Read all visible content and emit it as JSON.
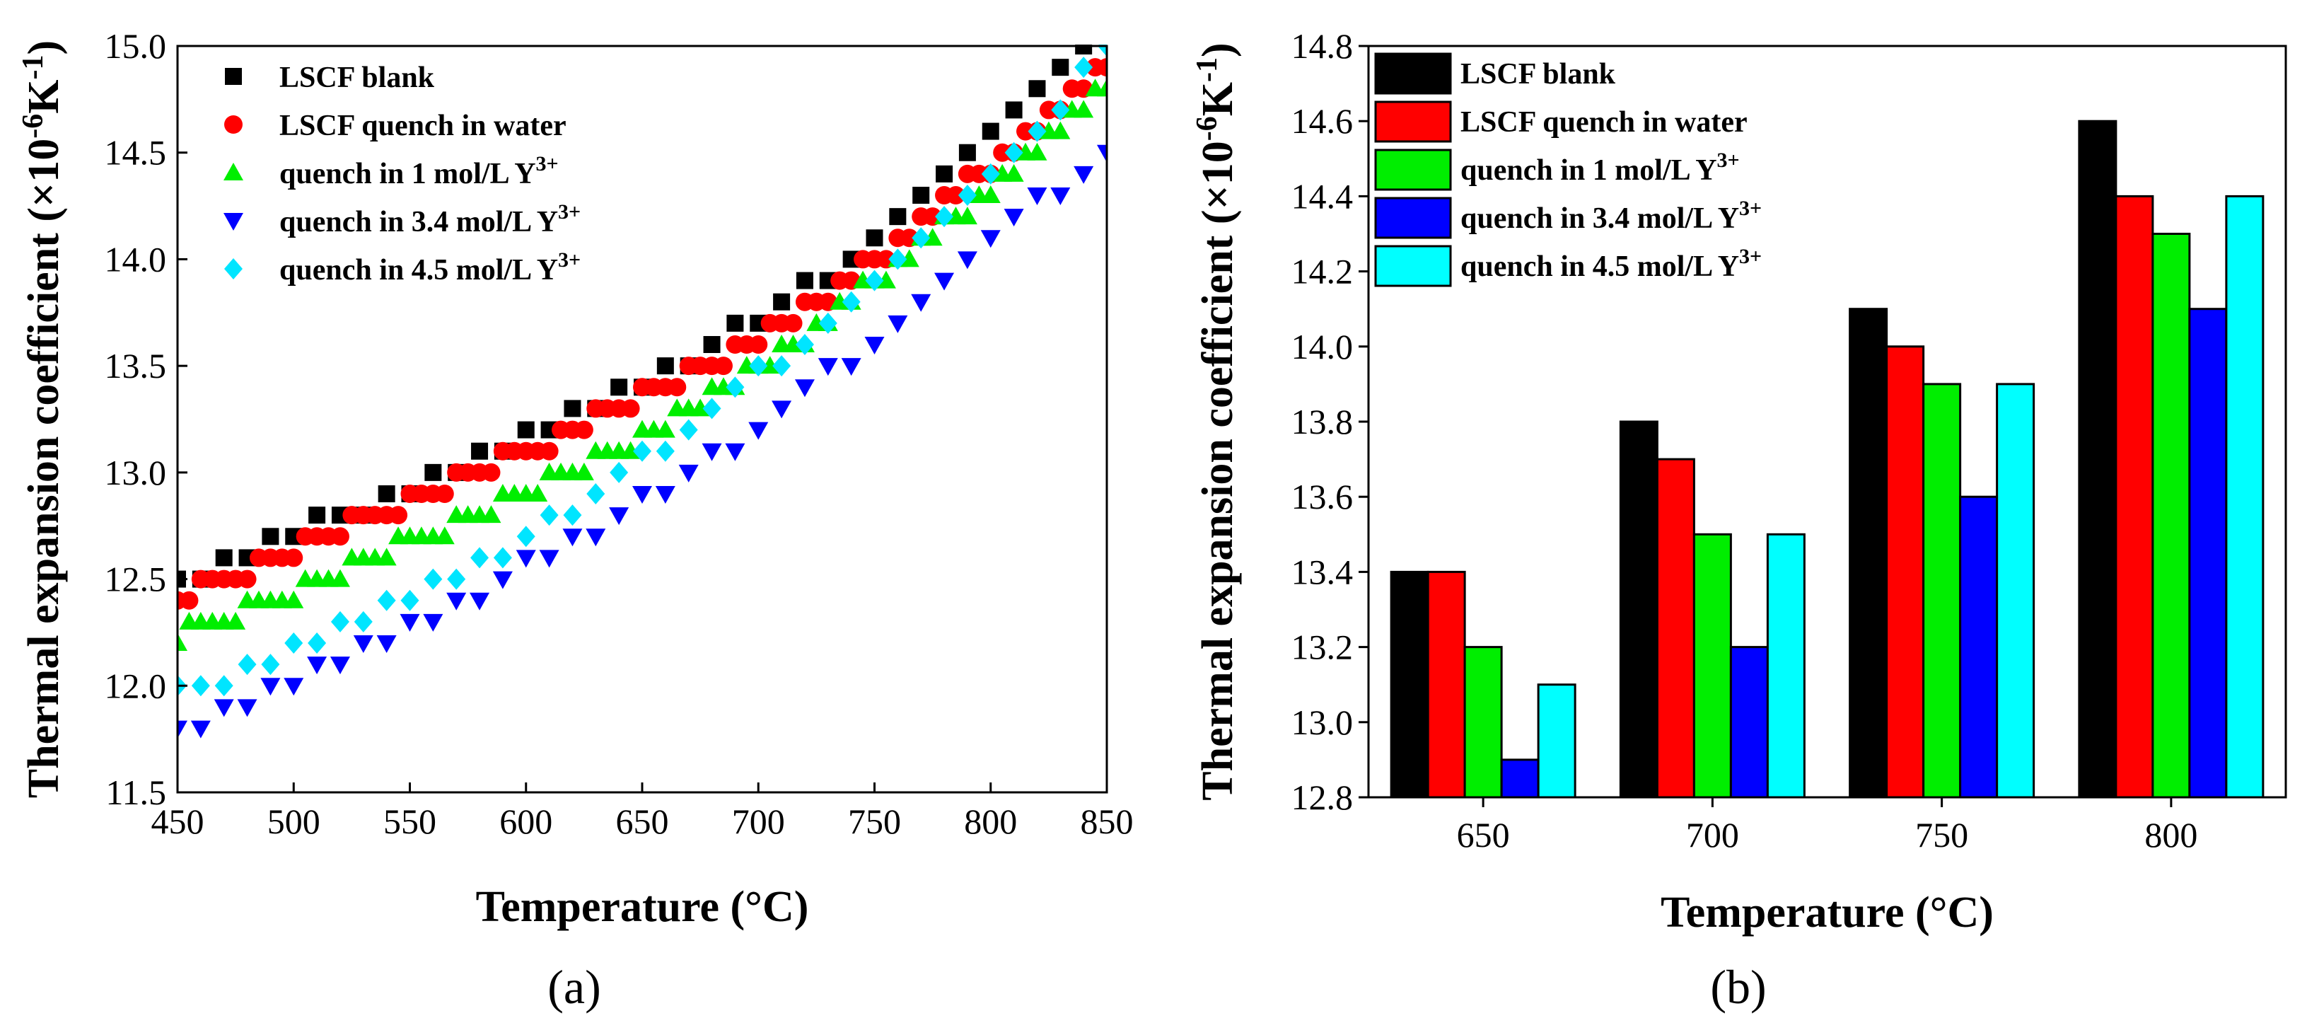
{
  "chart_data": [
    {
      "type": "scatter",
      "panel_label": "(a)",
      "xlabel": "Temperature (°C)",
      "ylabel": "Thermal expansion coefficient (×10⁻⁶K⁻¹)",
      "xlim": [
        450,
        850
      ],
      "ylim": [
        11.5,
        15.0
      ],
      "xticks": [
        "450",
        "500",
        "550",
        "600",
        "650",
        "700",
        "750",
        "800",
        "850"
      ],
      "yticks": [
        "11.5",
        "12.0",
        "12.5",
        "13.0",
        "13.5",
        "14.0",
        "14.5",
        "15.0"
      ],
      "legend_position": "top-left",
      "series": [
        {
          "name": "LSCF blank",
          "marker": "square",
          "color": "#000000",
          "x": [
            450,
            460,
            470,
            480,
            490,
            500,
            510,
            520,
            530,
            540,
            550,
            560,
            570,
            580,
            590,
            600,
            610,
            620,
            630,
            640,
            650,
            660,
            670,
            680,
            690,
            700,
            710,
            720,
            730,
            740,
            750,
            760,
            770,
            780,
            790,
            800,
            810,
            820,
            830,
            840
          ],
          "y": [
            12.5,
            12.5,
            12.6,
            12.6,
            12.7,
            12.7,
            12.8,
            12.8,
            12.8,
            12.9,
            12.9,
            13.0,
            13.0,
            13.1,
            13.1,
            13.2,
            13.2,
            13.3,
            13.3,
            13.4,
            13.4,
            13.5,
            13.5,
            13.6,
            13.7,
            13.7,
            13.8,
            13.9,
            13.9,
            14.0,
            14.1,
            14.2,
            14.3,
            14.4,
            14.5,
            14.6,
            14.7,
            14.8,
            14.9,
            15.0
          ]
        },
        {
          "name": "LSCF quench in water",
          "marker": "circle",
          "color": "#ff0000",
          "x": [
            450,
            455,
            460,
            465,
            470,
            475,
            480,
            485,
            490,
            495,
            500,
            505,
            510,
            515,
            520,
            525,
            530,
            535,
            540,
            545,
            550,
            555,
            560,
            565,
            570,
            575,
            580,
            585,
            590,
            595,
            600,
            605,
            610,
            615,
            620,
            625,
            630,
            635,
            640,
            645,
            650,
            655,
            660,
            665,
            670,
            675,
            680,
            685,
            690,
            695,
            700,
            705,
            710,
            715,
            720,
            725,
            730,
            735,
            740,
            745,
            750,
            755,
            760,
            765,
            770,
            775,
            780,
            785,
            790,
            795,
            800,
            805,
            810,
            815,
            820,
            825,
            830,
            835,
            840,
            845,
            850
          ],
          "y": [
            12.4,
            12.4,
            12.5,
            12.5,
            12.5,
            12.5,
            12.5,
            12.6,
            12.6,
            12.6,
            12.6,
            12.7,
            12.7,
            12.7,
            12.7,
            12.8,
            12.8,
            12.8,
            12.8,
            12.8,
            12.9,
            12.9,
            12.9,
            12.9,
            13.0,
            13.0,
            13.0,
            13.0,
            13.1,
            13.1,
            13.1,
            13.1,
            13.1,
            13.2,
            13.2,
            13.2,
            13.3,
            13.3,
            13.3,
            13.3,
            13.4,
            13.4,
            13.4,
            13.4,
            13.5,
            13.5,
            13.5,
            13.5,
            13.6,
            13.6,
            13.6,
            13.7,
            13.7,
            13.7,
            13.8,
            13.8,
            13.8,
            13.9,
            13.9,
            14.0,
            14.0,
            14.0,
            14.1,
            14.1,
            14.2,
            14.2,
            14.3,
            14.3,
            14.4,
            14.4,
            14.4,
            14.5,
            14.5,
            14.6,
            14.6,
            14.7,
            14.7,
            14.8,
            14.8,
            14.9,
            14.9
          ]
        },
        {
          "name": "quench in 1 mol/L Y3+",
          "marker": "triangle-up",
          "color": "#00ee00",
          "x": [
            450,
            455,
            460,
            465,
            470,
            475,
            480,
            485,
            490,
            495,
            500,
            505,
            510,
            515,
            520,
            525,
            530,
            535,
            540,
            545,
            550,
            555,
            560,
            565,
            570,
            575,
            580,
            585,
            590,
            595,
            600,
            605,
            610,
            615,
            620,
            625,
            630,
            635,
            640,
            645,
            650,
            655,
            660,
            665,
            670,
            675,
            680,
            685,
            690,
            695,
            700,
            705,
            710,
            715,
            720,
            725,
            730,
            735,
            740,
            745,
            750,
            755,
            760,
            765,
            770,
            775,
            780,
            785,
            790,
            795,
            800,
            805,
            810,
            815,
            820,
            825,
            830,
            835,
            840,
            845,
            850
          ],
          "y": [
            12.2,
            12.3,
            12.3,
            12.3,
            12.3,
            12.3,
            12.4,
            12.4,
            12.4,
            12.4,
            12.4,
            12.5,
            12.5,
            12.5,
            12.5,
            12.6,
            12.6,
            12.6,
            12.6,
            12.7,
            12.7,
            12.7,
            12.7,
            12.7,
            12.8,
            12.8,
            12.8,
            12.8,
            12.9,
            12.9,
            12.9,
            12.9,
            13.0,
            13.0,
            13.0,
            13.0,
            13.1,
            13.1,
            13.1,
            13.1,
            13.2,
            13.2,
            13.2,
            13.3,
            13.3,
            13.3,
            13.4,
            13.4,
            13.4,
            13.5,
            13.5,
            13.5,
            13.6,
            13.6,
            13.6,
            13.7,
            13.7,
            13.8,
            13.8,
            13.9,
            13.9,
            13.9,
            14.0,
            14.0,
            14.1,
            14.1,
            14.2,
            14.2,
            14.2,
            14.3,
            14.3,
            14.4,
            14.4,
            14.5,
            14.5,
            14.6,
            14.6,
            14.7,
            14.7,
            14.8,
            14.8
          ]
        },
        {
          "name": "quench in 3.4 mol/L Y3+",
          "marker": "triangle-down",
          "color": "#0000ff",
          "x": [
            450,
            460,
            470,
            480,
            490,
            500,
            510,
            520,
            530,
            540,
            550,
            560,
            570,
            580,
            590,
            600,
            610,
            620,
            630,
            640,
            650,
            660,
            670,
            680,
            690,
            700,
            710,
            720,
            730,
            740,
            750,
            760,
            770,
            780,
            790,
            800,
            810,
            820,
            830,
            840,
            850
          ],
          "y": [
            11.8,
            11.8,
            11.9,
            11.9,
            12.0,
            12.0,
            12.1,
            12.1,
            12.2,
            12.2,
            12.3,
            12.3,
            12.4,
            12.4,
            12.5,
            12.6,
            12.6,
            12.7,
            12.7,
            12.8,
            12.9,
            12.9,
            13.0,
            13.1,
            13.1,
            13.2,
            13.3,
            13.4,
            13.5,
            13.5,
            13.6,
            13.7,
            13.8,
            13.9,
            14.0,
            14.1,
            14.2,
            14.3,
            14.3,
            14.4,
            14.5
          ]
        },
        {
          "name": "quench in 4.5 mol/L Y3+",
          "marker": "diamond",
          "color": "#00e5ff",
          "x": [
            450,
            460,
            470,
            480,
            490,
            500,
            510,
            520,
            530,
            540,
            550,
            560,
            570,
            580,
            590,
            600,
            610,
            620,
            630,
            640,
            650,
            660,
            670,
            680,
            690,
            700,
            710,
            720,
            730,
            740,
            750,
            760,
            770,
            780,
            790,
            800,
            810,
            820,
            830,
            840,
            850
          ],
          "y": [
            12.0,
            12.0,
            12.0,
            12.1,
            12.1,
            12.2,
            12.2,
            12.3,
            12.3,
            12.4,
            12.4,
            12.5,
            12.5,
            12.6,
            12.6,
            12.7,
            12.8,
            12.8,
            12.9,
            13.0,
            13.1,
            13.1,
            13.2,
            13.3,
            13.4,
            13.5,
            13.5,
            13.6,
            13.7,
            13.8,
            13.9,
            14.0,
            14.1,
            14.2,
            14.3,
            14.4,
            14.5,
            14.6,
            14.7,
            14.9,
            15.0
          ]
        }
      ]
    },
    {
      "type": "bar",
      "panel_label": "(b)",
      "xlabel": "Temperature (°C)",
      "ylabel": "Thermal expansion coefficient (×10⁻⁶K⁻¹)",
      "ylim": [
        12.8,
        14.8
      ],
      "yticks": [
        "12.8",
        "13.0",
        "13.2",
        "13.4",
        "13.6",
        "13.8",
        "14.0",
        "14.2",
        "14.4",
        "14.6",
        "14.8"
      ],
      "categories": [
        "650",
        "700",
        "750",
        "800"
      ],
      "legend_position": "top-left",
      "series": [
        {
          "name": "LSCF blank",
          "color": "#000000",
          "values": [
            13.4,
            13.8,
            14.1,
            14.6
          ]
        },
        {
          "name": "LSCF quench in water",
          "color": "#ff0000",
          "values": [
            13.4,
            13.7,
            14.0,
            14.4
          ]
        },
        {
          "name": "quench in 1 mol/L Y3+",
          "color": "#00ee00",
          "values": [
            13.2,
            13.5,
            13.9,
            14.3
          ]
        },
        {
          "name": "quench in 3.4 mol/L Y3+",
          "color": "#0000ff",
          "values": [
            12.9,
            13.2,
            13.6,
            14.1
          ]
        },
        {
          "name": "quench in 4.5 mol/L Y3+",
          "color": "#00ffff",
          "values": [
            13.1,
            13.5,
            13.9,
            14.4
          ]
        }
      ]
    }
  ]
}
